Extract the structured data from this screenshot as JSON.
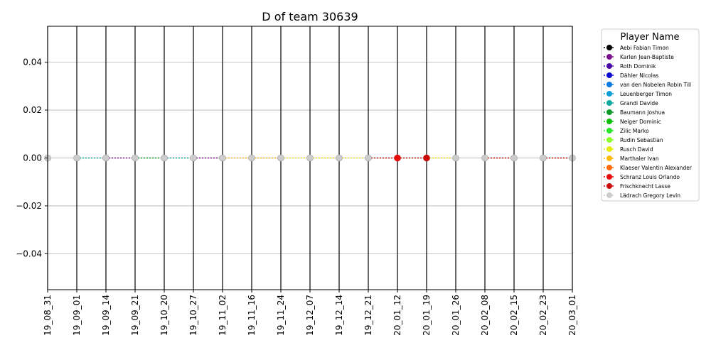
{
  "chart_data": {
    "type": "line",
    "title": "D of team 30639",
    "xlabel": "",
    "ylabel": "",
    "x": [
      "19_08_31",
      "19_09_01",
      "19_09_14",
      "19_09_21",
      "19_10_20",
      "19_10_27",
      "19_11_02",
      "19_11_16",
      "19_11_24",
      "19_12_07",
      "19_12_14",
      "19_12_21",
      "20_01_12",
      "20_01_19",
      "20_01_26",
      "20_02_08",
      "20_02_15",
      "20_02_23",
      "20_03_01"
    ],
    "ylim": [
      -0.055,
      0.055
    ],
    "yticks": [
      "0.04",
      "0.02",
      "0.00",
      "−0.02",
      "−0.04"
    ],
    "ytick_values": [
      0.04,
      0.02,
      0.0,
      -0.02,
      -0.04
    ],
    "grid": "y-axis",
    "legend_placement": "outside right",
    "legend_title": "Player Name",
    "series": [
      {
        "name": "Aebi Fabian Timon",
        "color": "#000000",
        "values": [
          0,
          0,
          0,
          0,
          0,
          0,
          0,
          0,
          0,
          0,
          0,
          0,
          0,
          0,
          0,
          0,
          0,
          0,
          0
        ]
      },
      {
        "name": "Karlen Jean-Baptiste",
        "color": "#7a0e8e",
        "values": [
          0,
          0,
          0,
          0,
          0,
          0,
          0,
          0,
          0,
          0,
          0,
          0,
          0,
          0,
          0,
          0,
          0,
          0,
          0
        ]
      },
      {
        "name": "Roth Dominik",
        "color": "#4a0aa6",
        "values": [
          0,
          0,
          0,
          0,
          0,
          0,
          0,
          0,
          0,
          0,
          0,
          0,
          0,
          0,
          0,
          0,
          0,
          0,
          0
        ]
      },
      {
        "name": "Dähler Nicolas",
        "color": "#0a0ad0",
        "values": [
          0,
          0,
          0,
          0,
          0,
          0,
          0,
          0,
          0,
          0,
          0,
          0,
          0,
          0,
          0,
          0,
          0,
          0,
          0
        ]
      },
      {
        "name": "van den Nobelen Robin Till",
        "color": "#0a78dc",
        "values": [
          0,
          0,
          0,
          0,
          0,
          0,
          0,
          0,
          0,
          0,
          0,
          0,
          0,
          0,
          0,
          0,
          0,
          0,
          0
        ]
      },
      {
        "name": "Leuenberger Timon",
        "color": "#0a9ed4",
        "values": [
          0,
          0,
          0,
          0,
          0,
          0,
          0,
          0,
          0,
          0,
          0,
          0,
          0,
          0,
          0,
          0,
          0,
          0,
          0
        ]
      },
      {
        "name": "Grandi Davide",
        "color": "#0aaa9e",
        "values": [
          0,
          0,
          0,
          0,
          0,
          0,
          0,
          0,
          0,
          0,
          0,
          0,
          0,
          0,
          0,
          0,
          0,
          0,
          0
        ]
      },
      {
        "name": "Baumann Joshua",
        "color": "#0a9a2a",
        "values": [
          0,
          0,
          0,
          0,
          0,
          0,
          0,
          0,
          0,
          0,
          0,
          0,
          0,
          0,
          0,
          0,
          0,
          0,
          0
        ]
      },
      {
        "name": "Neiger Dominic",
        "color": "#0abe0a",
        "values": [
          0,
          0,
          0,
          0,
          0,
          0,
          0,
          0,
          0,
          0,
          0,
          0,
          0,
          0,
          0,
          0,
          0,
          0,
          0
        ]
      },
      {
        "name": "Zilic Marko",
        "color": "#2ae62a",
        "values": [
          0,
          0,
          0,
          0,
          0,
          0,
          0,
          0,
          0,
          0,
          0,
          0,
          0,
          0,
          0,
          0,
          0,
          0,
          0
        ]
      },
      {
        "name": "Rudin Sebastian",
        "color": "#8aff2a",
        "values": [
          0,
          0,
          0,
          0,
          0,
          0,
          0,
          0,
          0,
          0,
          0,
          0,
          0,
          0,
          0,
          0,
          0,
          0,
          0
        ]
      },
      {
        "name": "Rusch David",
        "color": "#e6ea0a",
        "values": [
          0,
          0,
          0,
          0,
          0,
          0,
          0,
          0,
          0,
          0,
          0,
          0,
          0,
          0,
          0,
          0,
          0,
          0,
          0
        ]
      },
      {
        "name": "Marthaler Ivan",
        "color": "#ffba0a",
        "values": [
          0,
          0,
          0,
          0,
          0,
          0,
          0,
          0,
          0,
          0,
          0,
          0,
          0,
          0,
          0,
          0,
          0,
          0,
          0
        ]
      },
      {
        "name": "Klaeser Valentin Alexander",
        "color": "#ff6a0a",
        "values": [
          0,
          0,
          0,
          0,
          0,
          0,
          0,
          0,
          0,
          0,
          0,
          0,
          0,
          0,
          0,
          0,
          0,
          0,
          0
        ]
      },
      {
        "name": "Schranz Louis Orlando",
        "color": "#e60a0a",
        "values": [
          0,
          0,
          0,
          0,
          0,
          0,
          0,
          0,
          0,
          0,
          0,
          0,
          0,
          0,
          0,
          0,
          0,
          0,
          0
        ]
      },
      {
        "name": "Frischknecht Lasse",
        "color": "#c80a0a",
        "values": [
          0,
          0,
          0,
          0,
          0,
          0,
          0,
          0,
          0,
          0,
          0,
          0,
          0,
          0,
          0,
          0,
          0,
          0,
          0
        ]
      },
      {
        "name": "Lädrach Gregory Levin",
        "color": "#cccccc",
        "values": [
          0,
          0,
          0,
          0,
          0,
          0,
          0,
          0,
          0,
          0,
          0,
          0,
          0,
          0,
          0,
          0,
          0,
          0,
          0
        ]
      }
    ],
    "segment_colors": [
      "#cccccc",
      "#0aaa9e",
      "#7a0e8e",
      "#0a9a2a",
      "#0aaa9e",
      "#7a0e8e",
      "#ffba0a",
      "#ffba0a",
      "#e6ea0a",
      "#e6ea0a",
      "#e6ea0a",
      "#c80a0a",
      "#c80a0a",
      "#e6ea0a",
      "#cccccc",
      "#c80a0a",
      "#cccccc",
      "#c80a0a"
    ],
    "highlighted_points": [
      {
        "index": 12,
        "color": "#e60a0a"
      },
      {
        "index": 13,
        "color": "#c80a0a"
      }
    ],
    "point_color_default": "#cccccc"
  }
}
